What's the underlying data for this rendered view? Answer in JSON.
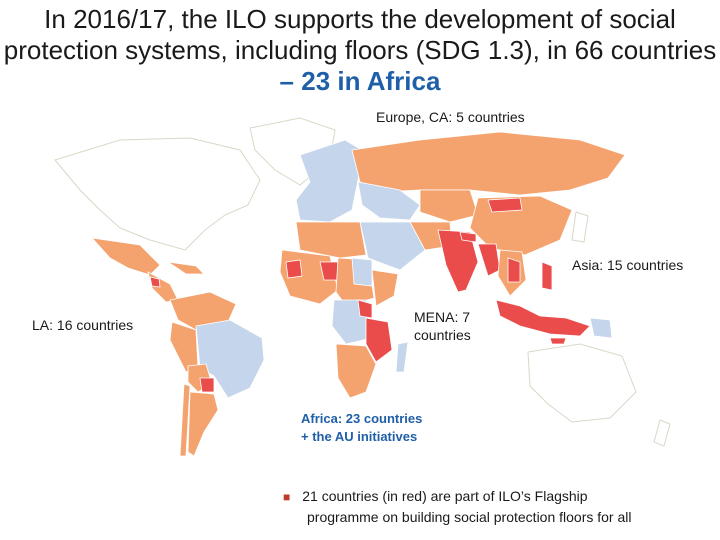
{
  "title": {
    "line1": "In 2016/17, the ILO supports the development of social",
    "line2": "protection systems, including floors (SDG 1.3), in 66 countries",
    "line3": "– 23 in Africa"
  },
  "labels": {
    "europe": "Europe, CA: 5 countries",
    "asia": "Asia: 15 countries",
    "la": "LA: 16 countries",
    "mena_1": "MENA: 7",
    "mena_2": "countries",
    "africa_1": "Africa: 23 countries",
    "africa_2": "+ the AU initiatives"
  },
  "note": {
    "line1": "21 countries (in red) are part of ILO’s Flagship",
    "line2": "programme on building social protection floors for all"
  },
  "colors": {
    "supported": "#f4a36f",
    "flagship": "#ea4b4b",
    "other": "#c5d6ec",
    "accent": "#1f5fa8"
  }
}
